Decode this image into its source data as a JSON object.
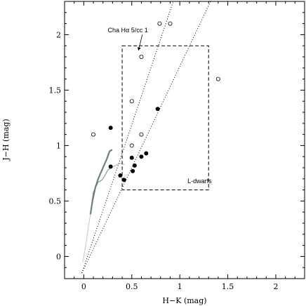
{
  "chart_data": {
    "type": "scatter",
    "xlabel": "H−K (mag)",
    "ylabel": "J−H (mag)",
    "xlim": [
      -0.2,
      2.3
    ],
    "ylim": [
      -0.2,
      2.3
    ],
    "xticks": [
      0,
      0.5,
      1,
      1.5,
      2
    ],
    "xtick_labels": [
      "0",
      "0.5",
      "1",
      "1.5",
      "2"
    ],
    "yticks": [
      0,
      0.5,
      1,
      1.5,
      2
    ],
    "ytick_labels": [
      "0",
      "0.5",
      "1",
      "1.5",
      "2"
    ],
    "grid": false,
    "series": [
      {
        "marker": "filled-circle",
        "color": "#000000",
        "points": [
          [
            0.28,
            1.16
          ],
          [
            0.77,
            1.33
          ],
          [
            0.28,
            0.81
          ],
          [
            0.5,
            0.89
          ],
          [
            0.6,
            0.9
          ],
          [
            0.65,
            0.93
          ],
          [
            0.53,
            0.82
          ],
          [
            0.51,
            0.77
          ],
          [
            0.38,
            0.73
          ],
          [
            0.42,
            0.69
          ]
        ]
      },
      {
        "marker": "open-circle",
        "color": "#000000",
        "points": [
          [
            0.79,
            2.1
          ],
          [
            0.9,
            2.1
          ],
          [
            0.6,
            1.8
          ],
          [
            1.4,
            1.6
          ],
          [
            0.5,
            1.4
          ],
          [
            0.1,
            1.1
          ],
          [
            0.6,
            1.1
          ],
          [
            0.5,
            1.0
          ]
        ]
      }
    ],
    "reddening_lines": [
      {
        "style": "dotted",
        "points": [
          [
            -0.02,
            -0.15
          ],
          [
            1.01,
            2.5
          ]
        ]
      },
      {
        "style": "dotted",
        "points": [
          [
            -0.02,
            -0.15
          ],
          [
            1.43,
            2.5
          ]
        ]
      }
    ],
    "loci": [
      {
        "name": "dwarf",
        "color": "#8a9a9a",
        "width": 1.2,
        "points": [
          [
            0.28,
            0.8
          ],
          [
            0.25,
            0.78
          ],
          [
            0.22,
            0.73
          ],
          [
            0.19,
            0.69
          ],
          [
            0.15,
            0.67
          ],
          [
            0.1,
            0.58
          ],
          [
            0.08,
            0.45
          ],
          [
            0.07,
            0.38
          ]
        ]
      },
      {
        "name": "giant",
        "color": "#6f7f7f",
        "width": 2.2,
        "points": [
          [
            0.07,
            0.38
          ],
          [
            0.09,
            0.5
          ],
          [
            0.12,
            0.62
          ],
          [
            0.15,
            0.7
          ],
          [
            0.2,
            0.8
          ],
          [
            0.24,
            0.88
          ],
          [
            0.27,
            0.95
          ],
          [
            0.29,
            0.96
          ]
        ]
      },
      {
        "name": "giant-faint",
        "color": "#c9d1d1",
        "width": 1.2,
        "points": [
          [
            0.07,
            0.38
          ],
          [
            0.05,
            0.28
          ],
          [
            0.03,
            0.15
          ],
          [
            0.01,
            0.05
          ],
          [
            -0.01,
            -0.05
          ]
        ]
      },
      {
        "name": "dwarf-tail",
        "color": "#b8c4c4",
        "width": 1.2,
        "points": [
          [
            0.28,
            0.8
          ],
          [
            0.33,
            0.82
          ],
          [
            0.38,
            0.84
          ],
          [
            0.42,
            0.83
          ]
        ]
      }
    ],
    "region_box": {
      "x": [
        0.4,
        1.3
      ],
      "y": [
        0.6,
        1.9
      ],
      "style": "dashed"
    },
    "annotations": [
      {
        "text": "Cha Hα 5/cc 1",
        "at": [
          0.25,
          2.02
        ],
        "arrow_to": [
          0.57,
          1.86
        ]
      },
      {
        "text": "L-dwarfs",
        "at": [
          1.08,
          0.66
        ]
      }
    ]
  }
}
